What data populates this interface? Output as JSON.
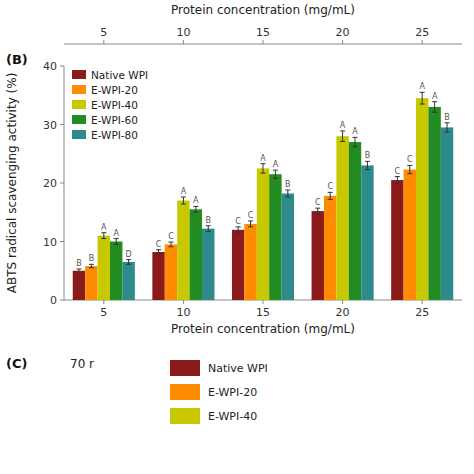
{
  "chart_data": [
    {
      "type": "axis",
      "xlabel": "Protein concentration (mg/mL)",
      "categories": [
        "5",
        "10",
        "15",
        "20",
        "25"
      ]
    },
    {
      "type": "bar",
      "xlabel": "Protein concentration (mg/mL)",
      "ylabel": "ABTS radical scavenging activity (%)",
      "categories": [
        5,
        10,
        15,
        20,
        25
      ],
      "ylim": [
        0,
        40
      ],
      "yticks": [
        0,
        10,
        20,
        30,
        40
      ],
      "legend": "upper left",
      "annotations": [
        "(B)"
      ],
      "series": [
        {
          "name": "Native WPI",
          "color": "#8B1A1A",
          "values": [
            5.0,
            8.2,
            12.0,
            15.2,
            20.5
          ],
          "errors": [
            0.3,
            0.4,
            0.5,
            0.5,
            0.6
          ],
          "letters": [
            "B",
            "C",
            "C",
            "C",
            "C"
          ]
        },
        {
          "name": "E-WPI-20",
          "color": "#FF8C00",
          "values": [
            5.8,
            9.5,
            13.0,
            17.8,
            22.3
          ],
          "errors": [
            0.3,
            0.4,
            0.5,
            0.6,
            0.7
          ],
          "letters": [
            "B",
            "C",
            "C",
            "C",
            "C"
          ]
        },
        {
          "name": "E-WPI-40",
          "color": "#C8C800",
          "values": [
            11.0,
            17.0,
            22.5,
            28.0,
            34.5
          ],
          "errors": [
            0.5,
            0.6,
            0.8,
            0.9,
            1.0
          ],
          "letters": [
            "A",
            "A",
            "A",
            "A",
            "A"
          ]
        },
        {
          "name": "E-WPI-60",
          "color": "#228B22",
          "values": [
            10.0,
            15.5,
            21.5,
            27.0,
            33.0
          ],
          "errors": [
            0.5,
            0.5,
            0.7,
            0.8,
            0.9
          ],
          "letters": [
            "A",
            "A",
            "A",
            "A",
            "A"
          ]
        },
        {
          "name": "E-WPI-80",
          "color": "#2E8B8B",
          "values": [
            6.5,
            12.2,
            18.2,
            23.0,
            29.5
          ],
          "errors": [
            0.4,
            0.5,
            0.6,
            0.7,
            0.8
          ],
          "letters": [
            "D",
            "B",
            "B",
            "B",
            "B"
          ]
        }
      ]
    },
    {
      "type": "legend",
      "annotations": [
        "(C)",
        "70 r"
      ],
      "series": [
        {
          "name": "Native WPI",
          "color": "#8B1A1A"
        },
        {
          "name": "E-WPI-20",
          "color": "#FF8C00"
        },
        {
          "name": "E-WPI-40",
          "color": "#C8C800"
        }
      ]
    }
  ]
}
